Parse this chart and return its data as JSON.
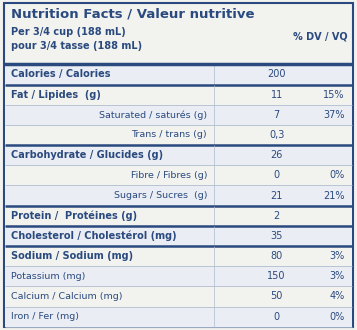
{
  "title": "Nutrition Facts / Valeur nutritive",
  "serving_line1": "Per 3/4 cup (188 mL)",
  "serving_line2": "pour 3/4 tasse (188 mL)",
  "dv_label": "% DV / VQ",
  "rows": [
    {
      "label": "Calories / Calories",
      "bold": true,
      "indent": false,
      "value": "200",
      "dv": ""
    },
    {
      "label": "Fat / Lipides  (g)",
      "bold": true,
      "indent": false,
      "value": "11",
      "dv": "15%"
    },
    {
      "label": "Saturated / saturés (g)",
      "bold": false,
      "indent": true,
      "value": "7",
      "dv": "37%"
    },
    {
      "label": "Trans / trans (g)",
      "bold": false,
      "indent": true,
      "value": "0,3",
      "dv": ""
    },
    {
      "label": "Carbohydrate / Glucides (g)",
      "bold": true,
      "indent": false,
      "value": "26",
      "dv": ""
    },
    {
      "label": "Fibre / Fibres (g)",
      "bold": false,
      "indent": true,
      "value": "0",
      "dv": "0%"
    },
    {
      "label": "Sugars / Sucres  (g)",
      "bold": false,
      "indent": true,
      "value": "21",
      "dv": "21%"
    },
    {
      "label": "Protein /  Protéines (g)",
      "bold": true,
      "indent": false,
      "value": "2",
      "dv": ""
    },
    {
      "label": "Cholesterol / Cholestérol (mg)",
      "bold": true,
      "indent": false,
      "value": "35",
      "dv": ""
    },
    {
      "label": "Sodium / Sodium (mg)",
      "bold": true,
      "indent": false,
      "value": "80",
      "dv": "3%"
    },
    {
      "label": "Potassium (mg)",
      "bold": false,
      "indent": false,
      "value": "150",
      "dv": "3%"
    },
    {
      "label": "Calcium / Calcium (mg)",
      "bold": false,
      "indent": false,
      "value": "50",
      "dv": "4%"
    },
    {
      "label": "Iron / Fer (mg)",
      "bold": false,
      "indent": false,
      "value": "0",
      "dv": "0%"
    }
  ],
  "bg_color": "#f2f2ee",
  "text_color": "#2a4a7f",
  "border_color": "#2a4a7f",
  "thin_line_color": "#b0bcd0",
  "thick_rows": [
    0,
    1,
    4,
    7,
    8,
    9
  ],
  "fig_width": 3.57,
  "fig_height": 3.3
}
